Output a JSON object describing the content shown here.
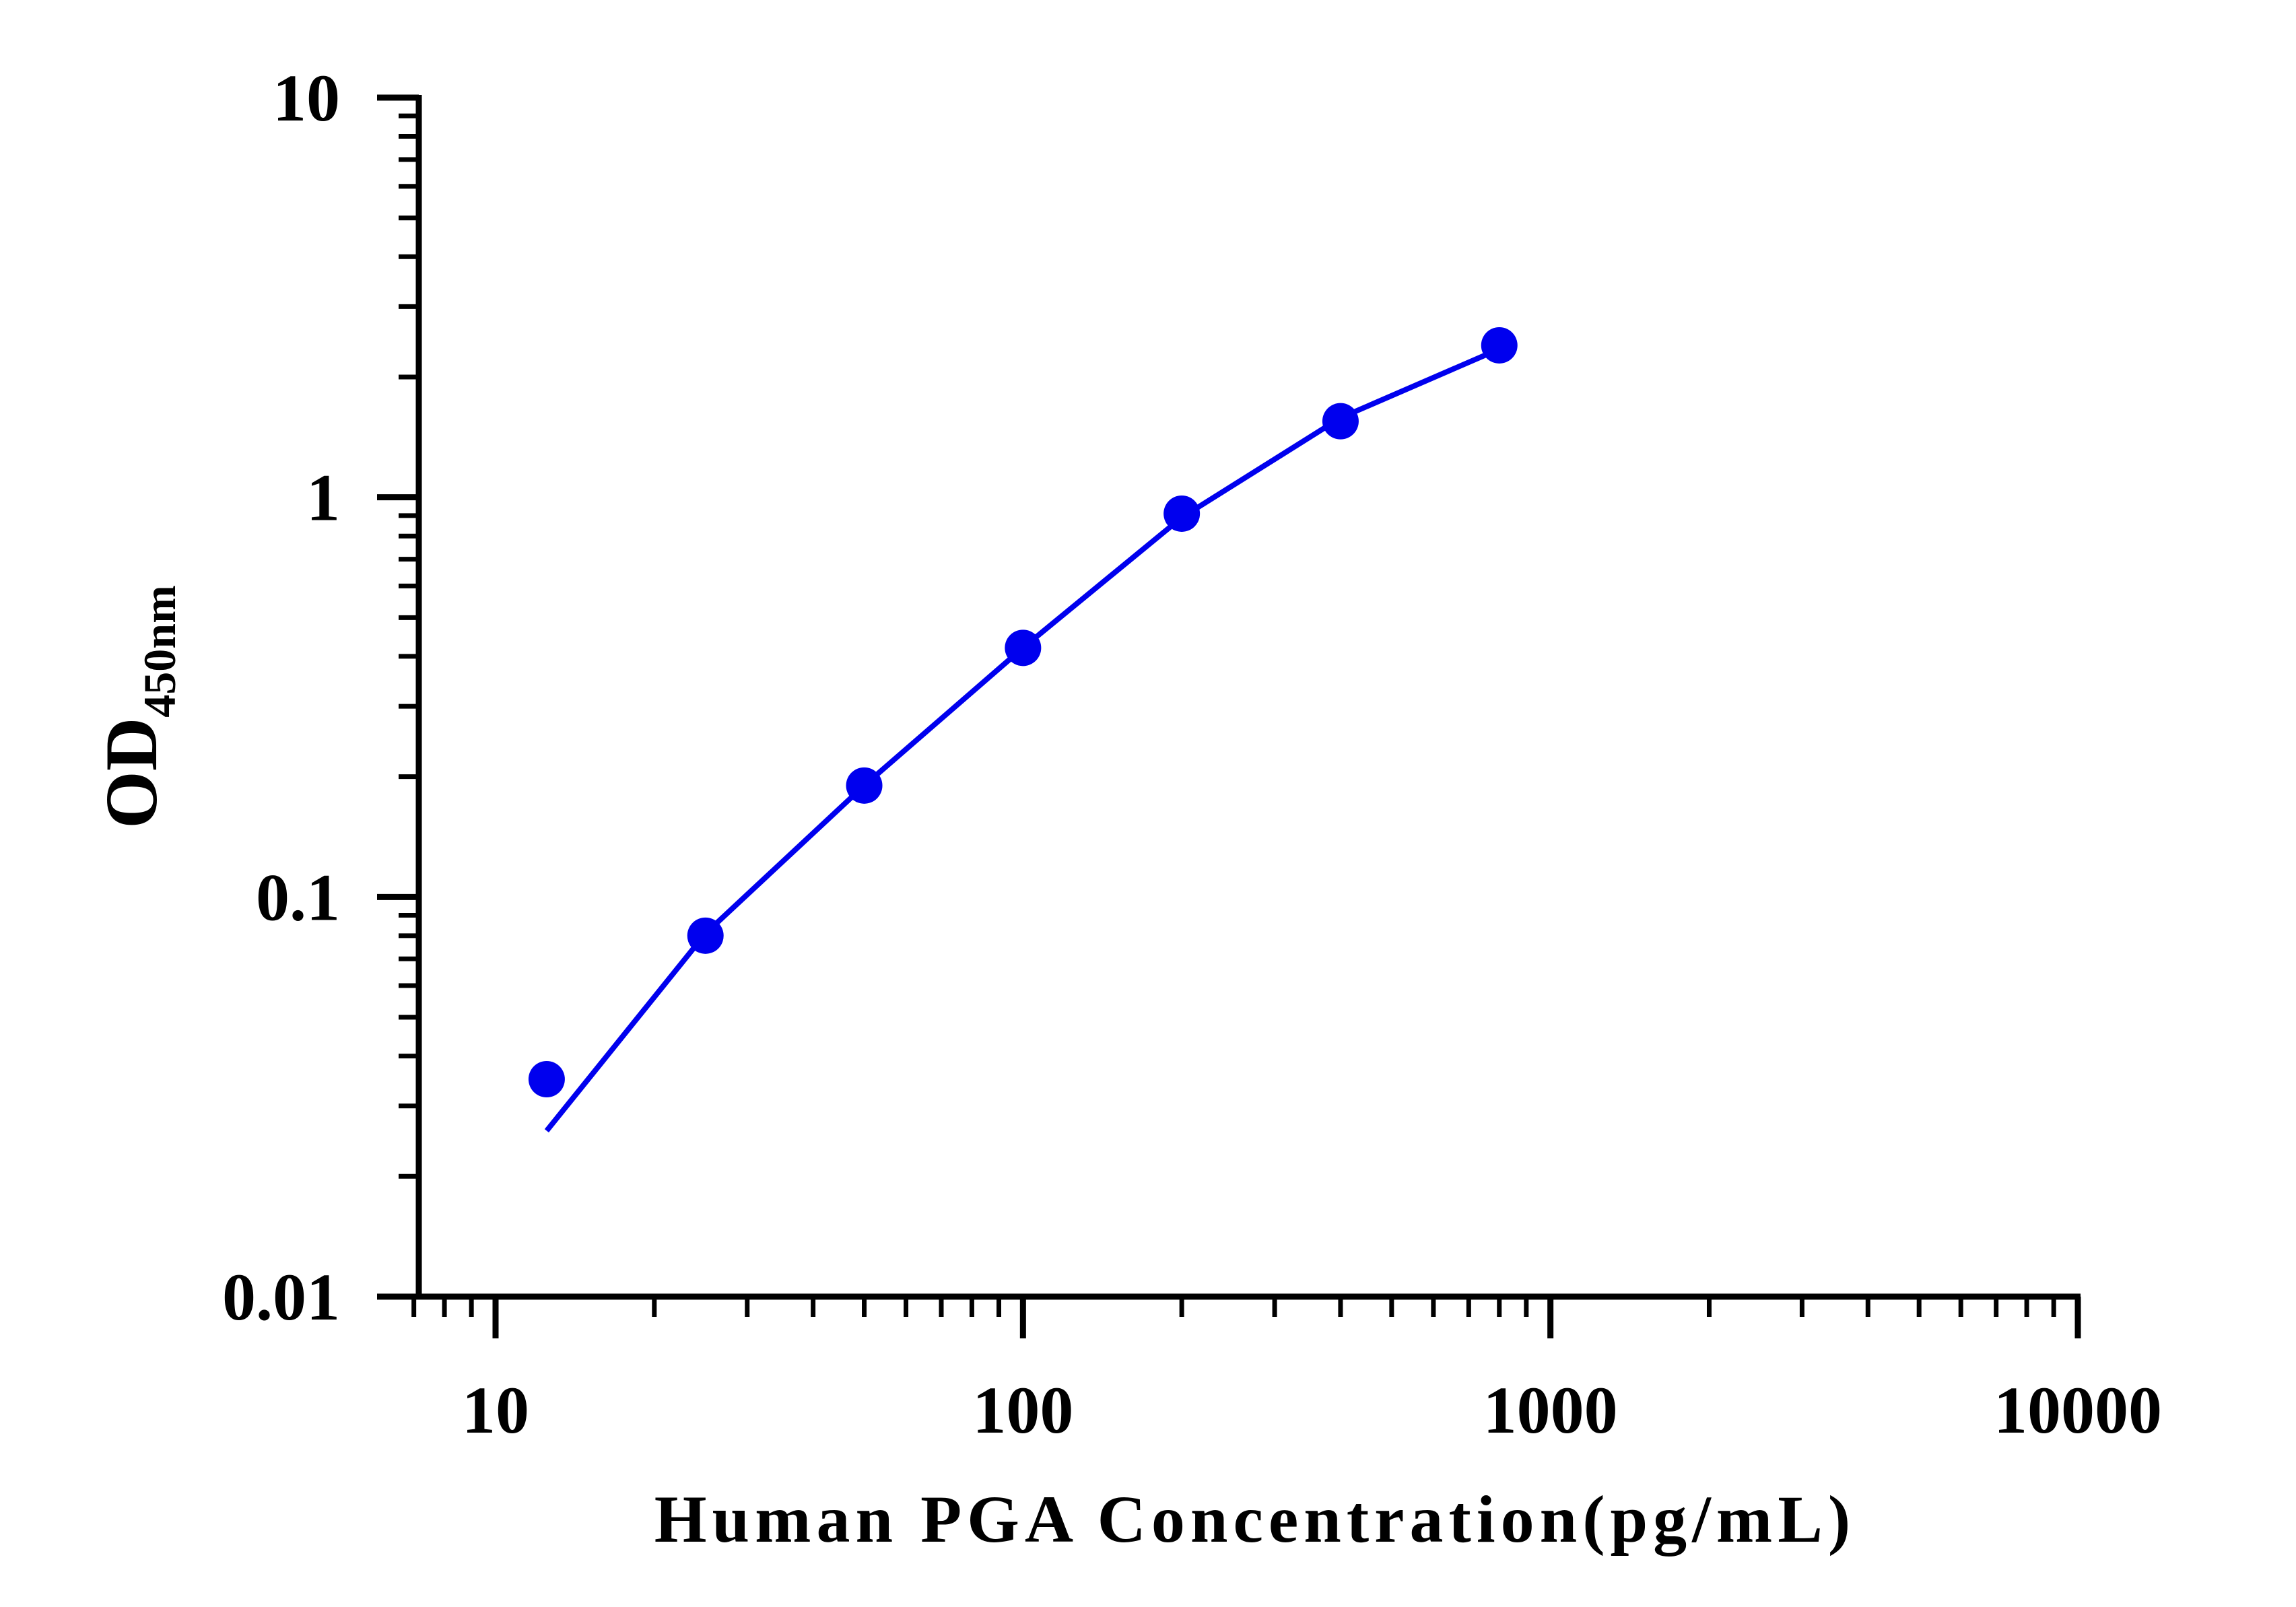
{
  "chart_data": {
    "type": "scatter",
    "title": "",
    "xlabel": "Human PGA Concentration(pg/mL)",
    "ylabel": "OD",
    "ylabel_subscript": "450nm",
    "x_scale": "log",
    "y_scale": "log",
    "xlim": [
      7,
      10000
    ],
    "ylim": [
      0.01,
      10
    ],
    "x_tick_labels": [
      "10",
      "100",
      "1000",
      "10000"
    ],
    "y_tick_labels": [
      "0.01",
      "0.1",
      "1",
      "10"
    ],
    "grid": false,
    "legend": "none",
    "series": [
      {
        "x": [
          12.5,
          25,
          50,
          100,
          200,
          400,
          800
        ],
        "y": [
          0.035,
          0.08,
          0.19,
          0.42,
          0.91,
          1.55,
          2.4
        ],
        "marker_color": "#0000ee"
      }
    ],
    "fit_curve": {
      "line_color": "#0000ee",
      "x": [
        12.5,
        25,
        50,
        100,
        200,
        400,
        800
      ],
      "y": [
        0.026,
        0.081,
        0.19,
        0.42,
        0.89,
        1.58,
        2.35
      ]
    }
  }
}
